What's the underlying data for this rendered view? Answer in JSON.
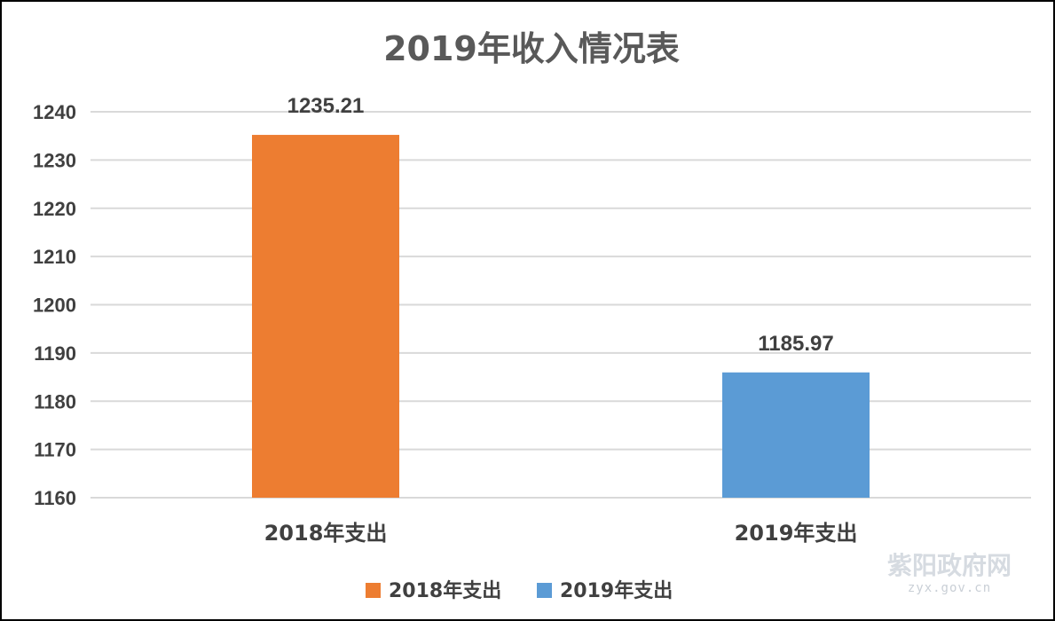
{
  "chart_data": {
    "type": "bar",
    "title": "2019年收入情况表",
    "categories": [
      "2018年支出",
      "2019年支出"
    ],
    "values": [
      1235.21,
      1185.97
    ],
    "value_labels": [
      "1235.21",
      "1185.97"
    ],
    "colors": [
      "#ED7D31",
      "#5B9BD5"
    ],
    "ylim": [
      1160,
      1240
    ],
    "ytick_step": 10,
    "yticks": [
      "1160",
      "1170",
      "1180",
      "1190",
      "1200",
      "1210",
      "1220",
      "1230",
      "1240"
    ],
    "xlabel": "",
    "ylabel": "",
    "grid": true,
    "legend": {
      "placement": "bottom",
      "entries": [
        {
          "label": "2018年支出",
          "color": "#ED7D31"
        },
        {
          "label": "2019年支出",
          "color": "#5B9BD5"
        }
      ]
    }
  },
  "watermark": {
    "main": "紫阳政府网",
    "sub": "zyx.gov.cn"
  }
}
